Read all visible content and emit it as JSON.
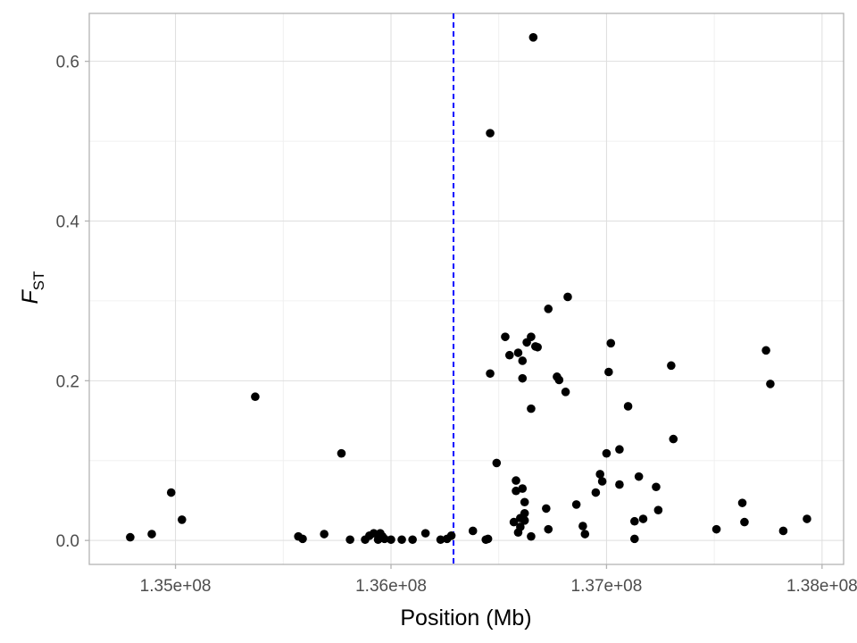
{
  "chart_data": {
    "type": "scatter",
    "title": "",
    "xlabel": "Position (Mb)",
    "ylabel_main": "F",
    "ylabel_sub": "ST",
    "xlim": [
      134600000,
      138100000
    ],
    "ylim": [
      -0.03,
      0.66
    ],
    "x_ticks": [
      135000000,
      136000000,
      137000000,
      138000000
    ],
    "x_tick_labels": [
      "1.35e+08",
      "1.36e+08",
      "1.37e+08",
      "1.38e+08"
    ],
    "y_ticks": [
      0.0,
      0.2,
      0.4,
      0.6
    ],
    "y_tick_labels": [
      "0.0",
      "0.2",
      "0.4",
      "0.6"
    ],
    "reference_line": {
      "x": 136290000,
      "style": "dashed",
      "color": "#0000ff"
    },
    "grid": true,
    "point_color": "#000000",
    "points": [
      [
        134790000,
        0.004
      ],
      [
        134890000,
        0.008
      ],
      [
        134980000,
        0.06
      ],
      [
        135030000,
        0.026
      ],
      [
        135370000,
        0.18
      ],
      [
        135570000,
        0.005
      ],
      [
        135590000,
        0.002
      ],
      [
        135690000,
        0.008
      ],
      [
        135770000,
        0.109
      ],
      [
        135810000,
        0.001
      ],
      [
        135880000,
        0.001
      ],
      [
        135900000,
        0.006
      ],
      [
        135920000,
        0.009
      ],
      [
        135940000,
        0.001
      ],
      [
        135950000,
        0.009
      ],
      [
        135960000,
        0.005
      ],
      [
        135970000,
        0.002
      ],
      [
        136000000,
        0.001
      ],
      [
        136050000,
        0.001
      ],
      [
        136100000,
        0.001
      ],
      [
        136160000,
        0.009
      ],
      [
        136230000,
        0.001
      ],
      [
        136260000,
        0.002
      ],
      [
        136280000,
        0.006
      ],
      [
        136380000,
        0.012
      ],
      [
        136440000,
        0.001
      ],
      [
        136450000,
        0.002
      ],
      [
        136460000,
        0.209
      ],
      [
        136460000,
        0.51
      ],
      [
        136490000,
        0.097
      ],
      [
        136530000,
        0.255
      ],
      [
        136550000,
        0.232
      ],
      [
        136570000,
        0.023
      ],
      [
        136580000,
        0.075
      ],
      [
        136580000,
        0.062
      ],
      [
        136590000,
        0.01
      ],
      [
        136590000,
        0.235
      ],
      [
        136600000,
        0.028
      ],
      [
        136600000,
        0.017
      ],
      [
        136610000,
        0.065
      ],
      [
        136610000,
        0.225
      ],
      [
        136610000,
        0.203
      ],
      [
        136620000,
        0.048
      ],
      [
        136620000,
        0.025
      ],
      [
        136620000,
        0.034
      ],
      [
        136630000,
        0.248
      ],
      [
        136650000,
        0.255
      ],
      [
        136650000,
        0.005
      ],
      [
        136650000,
        0.165
      ],
      [
        136660000,
        0.63
      ],
      [
        136670000,
        0.243
      ],
      [
        136680000,
        0.242
      ],
      [
        136720000,
        0.04
      ],
      [
        136730000,
        0.014
      ],
      [
        136730000,
        0.29
      ],
      [
        136770000,
        0.205
      ],
      [
        136780000,
        0.201
      ],
      [
        136810000,
        0.186
      ],
      [
        136820000,
        0.305
      ],
      [
        136860000,
        0.045
      ],
      [
        136890000,
        0.018
      ],
      [
        136900000,
        0.008
      ],
      [
        136950000,
        0.06
      ],
      [
        136970000,
        0.083
      ],
      [
        136980000,
        0.074
      ],
      [
        137000000,
        0.109
      ],
      [
        137010000,
        0.211
      ],
      [
        137020000,
        0.247
      ],
      [
        137060000,
        0.07
      ],
      [
        137060000,
        0.114
      ],
      [
        137100000,
        0.168
      ],
      [
        137130000,
        0.024
      ],
      [
        137130000,
        0.002
      ],
      [
        137150000,
        0.08
      ],
      [
        137170000,
        0.027
      ],
      [
        137230000,
        0.067
      ],
      [
        137240000,
        0.038
      ],
      [
        137300000,
        0.219
      ],
      [
        137310000,
        0.127
      ],
      [
        137510000,
        0.014
      ],
      [
        137630000,
        0.047
      ],
      [
        137640000,
        0.023
      ],
      [
        137740000,
        0.238
      ],
      [
        137760000,
        0.196
      ],
      [
        137820000,
        0.012
      ],
      [
        137930000,
        0.027
      ]
    ]
  }
}
